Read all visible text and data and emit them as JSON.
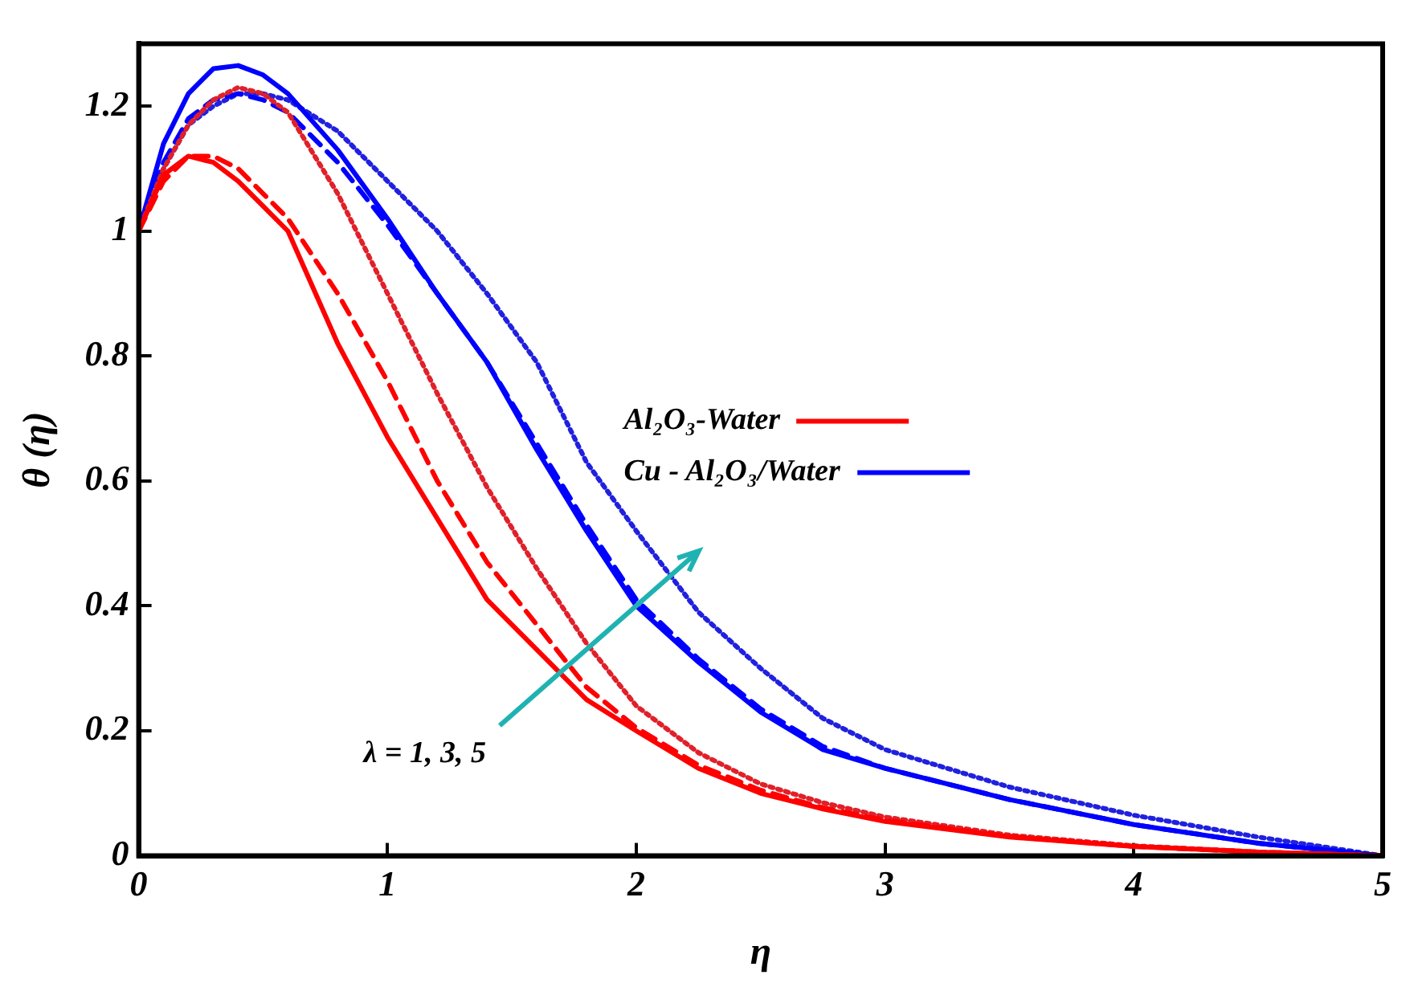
{
  "chart_data": {
    "type": "line",
    "xlabel": "η",
    "ylabel": "θ (η)",
    "xlim": [
      0,
      5
    ],
    "xticks": [
      0,
      1,
      2,
      3,
      4,
      5
    ],
    "ylim": [
      0,
      1.3
    ],
    "yticks": [
      0,
      0.2,
      0.4,
      0.6,
      0.8,
      1,
      1.2
    ],
    "grid": false,
    "legend": "right",
    "marker": "none",
    "x": [
      0,
      0.1,
      0.2,
      0.3,
      0.4,
      0.5,
      0.6,
      0.8,
      1.0,
      1.2,
      1.4,
      1.6,
      1.8,
      2.0,
      2.25,
      2.5,
      2.75,
      3,
      3.5,
      4,
      4.5,
      5
    ],
    "annotations": [
      "λ = 1, 3, 5"
    ],
    "series": [
      {
        "name": "Al₂O₃-Water",
        "color": "#ff0000",
        "line_style": "solid",
        "values": [
          1,
          1.09,
          1.12,
          1.11,
          1.08,
          1.04,
          1.0,
          0.82,
          0.67,
          0.54,
          0.41,
          0.33,
          0.25,
          0.2,
          0.14,
          0.1,
          0.075,
          0.055,
          0.03,
          0.015,
          0.006,
          0
        ]
      },
      {
        "color": "#ff0000",
        "line_style": "dashed",
        "values": [
          1,
          1.08,
          1.12,
          1.12,
          1.1,
          1.06,
          1.02,
          0.9,
          0.76,
          0.6,
          0.47,
          0.37,
          0.27,
          0.205,
          0.145,
          0.105,
          0.077,
          0.057,
          0.031,
          0.015,
          0.006,
          0
        ]
      },
      {
        "color": "#e0202a",
        "line_style": "dotted",
        "values": [
          1,
          1.1,
          1.17,
          1.21,
          1.23,
          1.22,
          1.19,
          1.06,
          0.9,
          0.74,
          0.59,
          0.46,
          0.34,
          0.24,
          0.165,
          0.115,
          0.085,
          0.062,
          0.033,
          0.016,
          0.006,
          0
        ]
      },
      {
        "name": "Cu - Al₂O₃/Water",
        "color": "#0000ff",
        "line_style": "solid",
        "values": [
          1,
          1.14,
          1.22,
          1.26,
          1.265,
          1.25,
          1.22,
          1.13,
          1.02,
          0.9,
          0.79,
          0.65,
          0.52,
          0.4,
          0.31,
          0.23,
          0.17,
          0.14,
          0.09,
          0.05,
          0.02,
          0
        ]
      },
      {
        "color": "#0000ff",
        "line_style": "dashed",
        "values": [
          1,
          1.11,
          1.18,
          1.21,
          1.22,
          1.21,
          1.19,
          1.11,
          1.01,
          0.9,
          0.79,
          0.66,
          0.53,
          0.41,
          0.315,
          0.235,
          0.175,
          0.14,
          0.09,
          0.05,
          0.02,
          0
        ]
      },
      {
        "color": "#2020e0",
        "line_style": "dotted",
        "values": [
          1,
          1.1,
          1.17,
          1.2,
          1.22,
          1.22,
          1.21,
          1.16,
          1.08,
          1.0,
          0.9,
          0.79,
          0.63,
          0.52,
          0.39,
          0.3,
          0.22,
          0.17,
          0.11,
          0.065,
          0.03,
          0
        ]
      }
    ]
  }
}
